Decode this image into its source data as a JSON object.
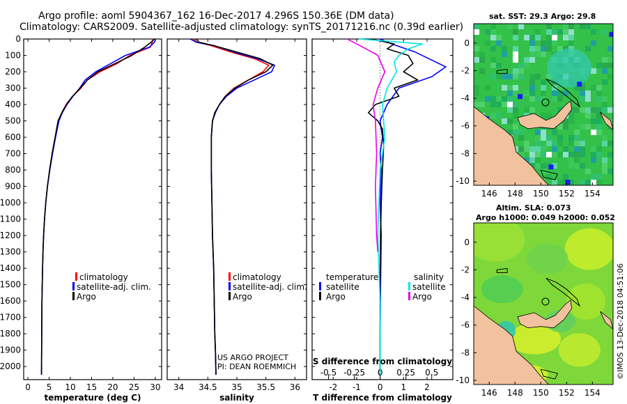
{
  "header": {
    "line1": "Argo profile: aoml 5904367_162 16-Dec-2017 4.296S 150.36E (DM data)",
    "line2": "Climatology: CARS2009. Satellite-adjusted climatology: synTS_20171216.nc (0.39d earlier)"
  },
  "colors": {
    "argo": "#000000",
    "clim": "#ff0000",
    "sat": "#0000ff",
    "sat_s": "#00e5e5",
    "argo_s": "#e600e6",
    "land": "#f2c29e",
    "sst_ocean": "#33c14a",
    "sla_ocean": "#7fd83a"
  },
  "credits": {
    "line1": "US ARGO PROJECT",
    "line2": "PI: DEAN ROEMMICH"
  },
  "timestamp": "©IMOS 13-Dec-2018 04:51:06",
  "depth_ticks": [
    "0",
    "100",
    "200",
    "300",
    "400",
    "500",
    "600",
    "700",
    "800",
    "900",
    "1000",
    "1100",
    "1200",
    "1300",
    "1400",
    "1500",
    "1600",
    "1700",
    "1800",
    "1900",
    "2000"
  ],
  "legend_tc": {
    "clim": "climatology",
    "sat": "satellite-adj. clim.",
    "argo": "Argo"
  },
  "legend_diff": {
    "temp_title": "temperature",
    "sal_title": "salinity",
    "sat": "satellite",
    "argo": "Argo"
  },
  "maps": {
    "sst": {
      "title": "sat. SST: 29.3 Argo: 29.8"
    },
    "sla": {
      "title1": "Altim. SLA: 0.073",
      "title2": "Argo h1000: 0.049 h2000: 0.052"
    },
    "xticks": [
      "146",
      "148",
      "150",
      "152",
      "154"
    ],
    "yticks": [
      "0",
      "-2",
      "-4",
      "-6",
      "-8",
      "-10"
    ]
  },
  "chart_data": [
    {
      "type": "line",
      "title": "",
      "xlabel": "temperature (deg C)",
      "ylabel": "",
      "xlim": [
        -1,
        31.5
      ],
      "ylim": [
        2080,
        0
      ],
      "xticks": [
        0,
        5,
        10,
        15,
        20,
        25,
        30
      ],
      "series": [
        {
          "name": "climatology",
          "color": "#ff0000",
          "x": [
            29.5,
            29.3,
            28.8,
            24.0,
            21.0,
            17.0,
            14.0,
            12.5,
            10.5,
            9.0,
            8.0,
            7.2,
            6.4,
            5.7,
            5.1,
            4.6,
            4.2,
            3.9,
            3.7,
            3.55,
            3.45,
            3.3,
            3.25,
            3.2
          ],
          "y": [
            0,
            20,
            50,
            100,
            150,
            200,
            250,
            300,
            350,
            400,
            450,
            500,
            600,
            700,
            800,
            900,
            1000,
            1100,
            1200,
            1300,
            1400,
            1600,
            1800,
            2050
          ]
        },
        {
          "name": "satellite-adj. clim.",
          "color": "#0000ff",
          "x": [
            30.1,
            29.8,
            28.6,
            23.0,
            19.5,
            16.0,
            13.5,
            12.2,
            10.6,
            9.2,
            8.1,
            7.3,
            6.5,
            5.8,
            5.15,
            4.6,
            4.2,
            3.9,
            3.7,
            3.55,
            3.45,
            3.3,
            3.25,
            3.2
          ],
          "y": [
            0,
            20,
            50,
            100,
            150,
            200,
            250,
            300,
            350,
            400,
            450,
            500,
            600,
            700,
            800,
            900,
            1000,
            1100,
            1200,
            1300,
            1400,
            1600,
            1800,
            2050
          ]
        },
        {
          "name": "Argo",
          "color": "#000000",
          "x": [
            29.8,
            29.0,
            27.5,
            24.5,
            20.5,
            16.5,
            14.0,
            12.3,
            10.5,
            9.1,
            8.0,
            7.1,
            6.4,
            5.7,
            5.1,
            4.6,
            4.2,
            3.9,
            3.7,
            3.55,
            3.45,
            3.3,
            3.25,
            3.2
          ],
          "y": [
            0,
            20,
            50,
            100,
            150,
            200,
            250,
            300,
            350,
            400,
            450,
            500,
            600,
            700,
            800,
            900,
            1000,
            1100,
            1200,
            1300,
            1400,
            1600,
            1800,
            2050
          ]
        }
      ]
    },
    {
      "type": "line",
      "xlabel": "salinity",
      "xlim": [
        33.8,
        36.2
      ],
      "ylim": [
        2080,
        0
      ],
      "xticks": [
        34,
        34.5,
        35,
        35.5,
        36
      ],
      "series": [
        {
          "name": "climatology",
          "color": "#ff0000",
          "x": [
            34.25,
            34.32,
            34.55,
            34.9,
            35.3,
            35.55,
            35.45,
            35.2,
            34.95,
            34.8,
            34.7,
            34.62,
            34.58,
            34.56,
            34.56,
            34.57,
            34.58,
            34.6,
            34.61,
            34.62,
            34.63,
            34.64
          ],
          "y": [
            0,
            20,
            40,
            80,
            120,
            160,
            200,
            250,
            300,
            350,
            400,
            450,
            500,
            600,
            800,
            1000,
            1200,
            1400,
            1600,
            1800,
            1900,
            2050
          ]
        },
        {
          "name": "satellite-adj. clim.",
          "color": "#0000ff",
          "x": [
            34.2,
            34.3,
            34.6,
            34.95,
            35.35,
            35.65,
            35.6,
            35.3,
            35.0,
            34.82,
            34.7,
            34.63,
            34.58,
            34.56,
            34.56,
            34.57,
            34.58,
            34.6,
            34.61,
            34.62,
            34.63,
            34.64
          ],
          "y": [
            0,
            20,
            40,
            80,
            120,
            160,
            200,
            250,
            300,
            350,
            400,
            450,
            500,
            600,
            800,
            1000,
            1200,
            1400,
            1600,
            1800,
            1900,
            2050
          ]
        },
        {
          "name": "Argo",
          "color": "#000000",
          "x": [
            34.3,
            34.35,
            34.6,
            35.0,
            35.4,
            35.62,
            35.5,
            35.2,
            34.97,
            34.8,
            34.7,
            34.62,
            34.58,
            34.56,
            34.56,
            34.57,
            34.58,
            34.6,
            34.61,
            34.62,
            34.63,
            34.64
          ],
          "y": [
            0,
            20,
            40,
            80,
            120,
            160,
            200,
            250,
            300,
            350,
            400,
            450,
            500,
            600,
            800,
            1000,
            1200,
            1400,
            1600,
            1800,
            1900,
            2050
          ]
        }
      ]
    },
    {
      "type": "line",
      "xlabel": "T difference from climatology",
      "xlabel2": "S difference from climatology",
      "xlim": [
        -2.9,
        3.1
      ],
      "ylim": [
        2080,
        0
      ],
      "xticks": [
        -2,
        -1,
        0,
        1,
        2
      ],
      "xticks_s": [
        -0.5,
        -0.25,
        0,
        0.25,
        0.5
      ],
      "xticks_s_labels": [
        "-0.5",
        "-0.25",
        "0",
        "0.25",
        "0.5"
      ],
      "series": [
        {
          "name": "temperature satellite",
          "color": "#0000ff",
          "x": [
            0,
            0.5,
            1.5,
            2.8,
            2.2,
            0.8,
            0.3,
            0.0,
            0.1,
            0.0,
            0.05,
            0.0,
            0.05,
            0.02,
            0.0,
            0.0
          ],
          "y": [
            0,
            30,
            80,
            170,
            230,
            300,
            400,
            500,
            600,
            700,
            800,
            1000,
            1200,
            1500,
            1800,
            2050
          ]
        },
        {
          "name": "temperature Argo",
          "color": "#000000",
          "x": [
            -0.4,
            0.6,
            0.3,
            1.2,
            1.4,
            1.0,
            1.6,
            0.6,
            0.8,
            -0.2,
            -0.5,
            -0.1,
            0.1,
            0.15,
            0.1,
            0.05,
            0.02,
            0.0,
            0.0
          ],
          "y": [
            0,
            30,
            60,
            100,
            150,
            200,
            250,
            300,
            350,
            400,
            450,
            500,
            550,
            650,
            800,
            1000,
            1200,
            1500,
            2050
          ]
        },
        {
          "name": "salinity satellite",
          "color": "#00e5e5",
          "x": [
            -0.9,
            1.8,
            1.2,
            0.8,
            0.6,
            0.7,
            0.3,
            0.1,
            0.2,
            0.0,
            -0.1,
            0.0,
            0.0
          ],
          "y": [
            0,
            30,
            60,
            100,
            140,
            200,
            300,
            400,
            600,
            800,
            1200,
            1600,
            2050
          ]
        },
        {
          "name": "salinity Argo",
          "color": "#e600e6",
          "x": [
            -1.4,
            -1.0,
            -0.6,
            -0.1,
            0.2,
            -0.1,
            -0.3,
            -0.2,
            -0.15,
            -0.2,
            -0.15,
            -0.1
          ],
          "y": [
            0,
            30,
            60,
            100,
            200,
            300,
            400,
            500,
            700,
            900,
            1200,
            1300
          ]
        }
      ]
    }
  ]
}
